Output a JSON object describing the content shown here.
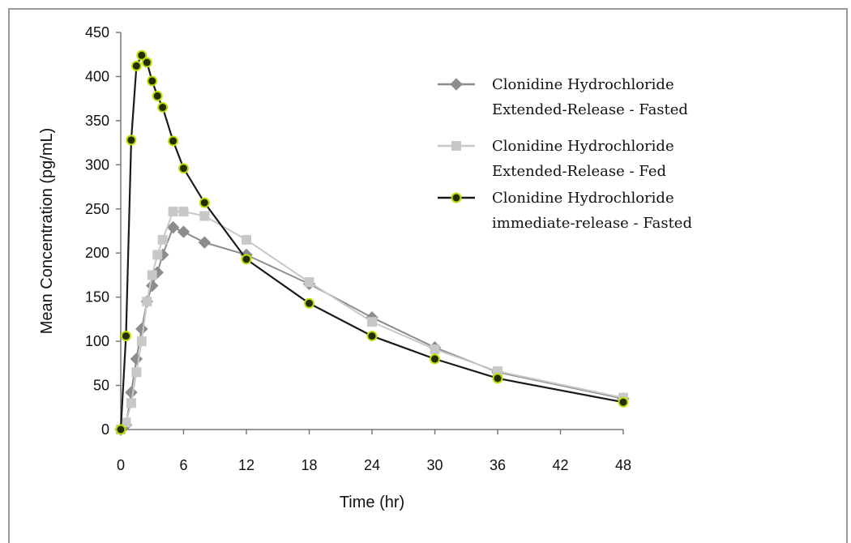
{
  "chart_data": {
    "type": "line",
    "title": "",
    "xlabel": "Time (hr)",
    "ylabel": "Mean Concentration (pg/mL)",
    "xlim": [
      0,
      48
    ],
    "ylim": [
      0,
      450
    ],
    "xticks": [
      0,
      6,
      12,
      18,
      24,
      30,
      36,
      42,
      48
    ],
    "yticks": [
      0,
      50,
      100,
      150,
      200,
      250,
      300,
      350,
      400,
      450
    ],
    "grid": false,
    "legend_position": "top-right",
    "series": [
      {
        "name_lines": [
          "Clonidine Hydrochloride",
          "Extended-Release - Fasted"
        ],
        "marker": "diamond",
        "color": "#8c8c8c",
        "fill": "#8c8c8c",
        "x": [
          0,
          0.5,
          1,
          1.5,
          2,
          2.5,
          3,
          3.5,
          4,
          5,
          6,
          8,
          12,
          18,
          24,
          30,
          36,
          48
        ],
        "y": [
          0,
          5,
          42,
          80,
          114,
          145,
          163,
          178,
          198,
          229,
          224,
          212,
          198,
          165,
          127,
          93,
          65,
          35
        ]
      },
      {
        "name_lines": [
          "Clonidine Hydrochloride",
          "Extended-Release - Fed"
        ],
        "marker": "square",
        "color": "#c8c8c8",
        "fill": "#c8c8c8",
        "x": [
          0,
          0.5,
          1,
          1.5,
          2,
          2.5,
          3,
          3.5,
          4,
          5,
          6,
          8,
          12,
          18,
          24,
          30,
          36,
          48
        ],
        "y": [
          0,
          8,
          30,
          65,
          100,
          145,
          175,
          198,
          215,
          247,
          247,
          242,
          215,
          167,
          122,
          91,
          66,
          36
        ]
      },
      {
        "name_lines": [
          "Clonidine Hydrochloride",
          "immediate-release - Fasted"
        ],
        "marker": "circle",
        "color": "#1a1a1a",
        "fill": "#2a2a00",
        "outline": "#b8e000",
        "x": [
          0,
          0.5,
          1,
          1.5,
          2,
          2.5,
          3,
          3.5,
          4,
          5,
          6,
          8,
          12,
          18,
          24,
          30,
          36,
          48
        ],
        "y": [
          0,
          106,
          328,
          412,
          424,
          416,
          395,
          378,
          365,
          327,
          296,
          257,
          193,
          143,
          106,
          80,
          58,
          31
        ]
      }
    ]
  }
}
